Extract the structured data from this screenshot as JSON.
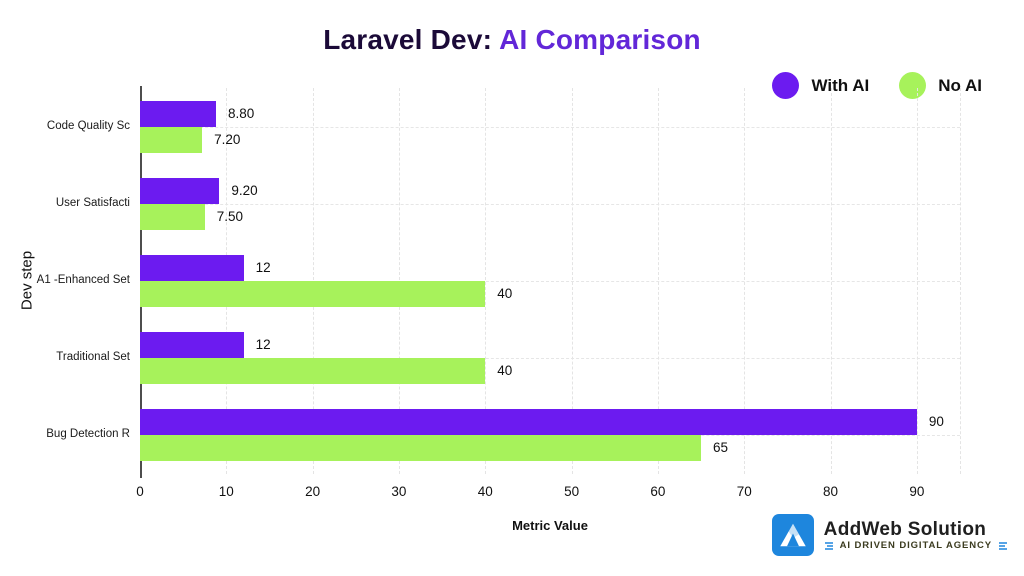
{
  "title": {
    "prefix": "Laravel Dev: ",
    "highlight": "AI Comparison"
  },
  "legend": [
    {
      "label": "With AI",
      "color": "#6c1bf0"
    },
    {
      "label": "No AI",
      "color": "#a7f25b"
    }
  ],
  "chart_data": {
    "type": "bar",
    "orientation": "horizontal",
    "title": "Laravel Dev: AI Comparison",
    "categories": [
      "Code Quality Sc",
      "User Satisfacti",
      "A1 -Enhanced Set",
      "Traditional Set",
      "Bug Detection R"
    ],
    "series": [
      {
        "name": "With AI",
        "color": "#6c1bf0",
        "values": [
          8.8,
          9.2,
          12,
          12,
          90
        ],
        "labels": [
          "8.80",
          "9.20",
          "12",
          "12",
          "90"
        ]
      },
      {
        "name": "No AI",
        "color": "#a7f25b",
        "values": [
          7.2,
          7.5,
          40,
          40,
          65
        ],
        "labels": [
          "7.20",
          "7.50",
          "40",
          "40",
          "65"
        ]
      }
    ],
    "xlabel": "Metric Value",
    "ylabel": "Dev step",
    "xlim": [
      0,
      95
    ],
    "xticks": [
      0,
      10,
      20,
      30,
      40,
      50,
      60,
      70,
      80,
      90
    ],
    "grid": "dashed",
    "legend_position": "top-right"
  },
  "footer_logo": {
    "name": "AddWeb Solution",
    "tagline": "AI DRIVEN DIGITAL AGENCY",
    "monogram": "A",
    "brand_blue": "#1e86dd"
  }
}
